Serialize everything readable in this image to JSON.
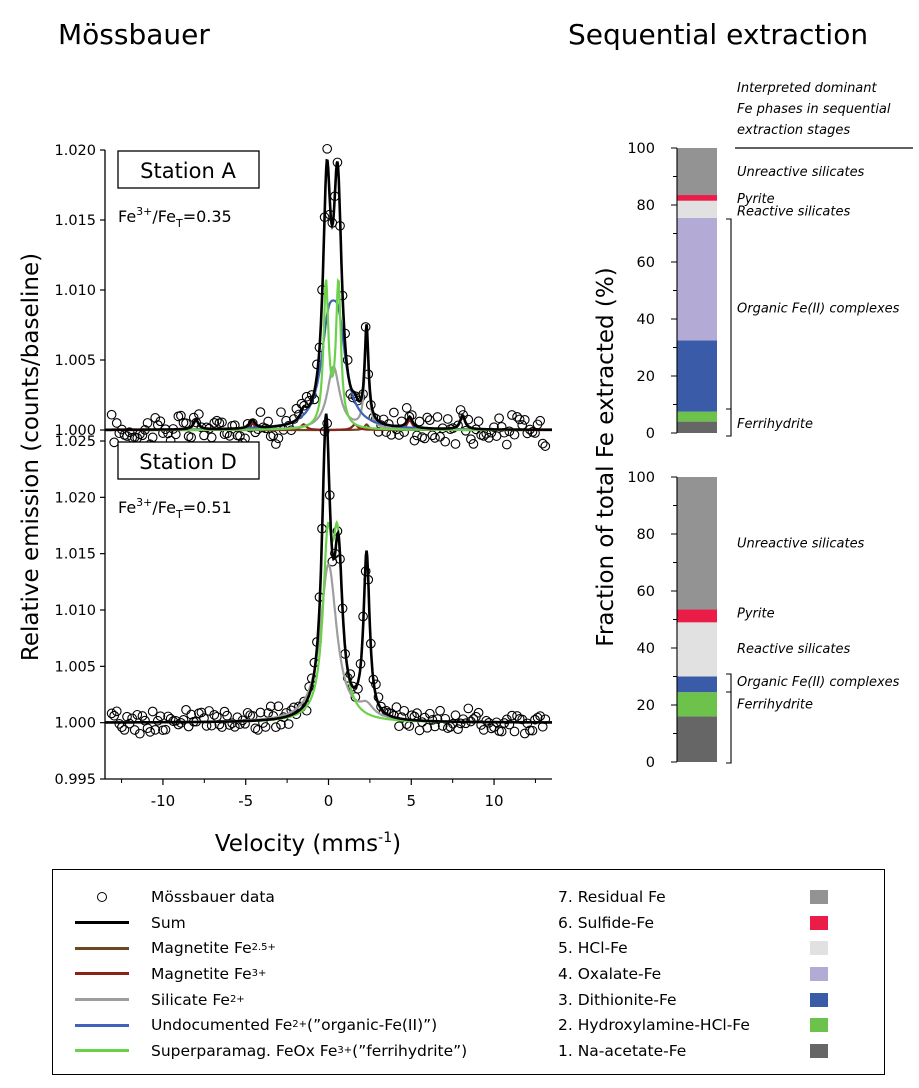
{
  "titles": {
    "left": "Mössbauer",
    "right": "Sequential extraction"
  },
  "chart_data": [
    {
      "type": "scatter",
      "name": "mossbauer",
      "xlabel_main": "Velocity (mms",
      "xlabel_sup": "-1",
      "xlabel_end": ")",
      "ylabel": "Relative emission (counts/baseline)",
      "xlim": [
        -13.5,
        13.5
      ],
      "xticks": [
        "-10",
        "-5",
        "0",
        "5",
        "10"
      ],
      "panels": [
        {
          "label": "Station A",
          "ratio": {
            "a": "Fe",
            "b": "3+",
            "c": "/Fe",
            "d": "T",
            "e": "=0.35"
          },
          "ylim": [
            0.998,
            1.02
          ],
          "yticks": [
            "1.000",
            "1.005",
            "1.010",
            "1.015",
            "1.020"
          ],
          "components": {
            "sum": [
              [
                -0.1,
                1.0163,
                0.28
              ],
              [
                0.55,
                1.0165,
                0.3
              ],
              [
                2.3,
                1.0068,
                0.14
              ],
              [
                -8.0,
                1.0007,
                0.18
              ],
              [
                8.1,
                1.001,
                0.18
              ],
              [
                -4.6,
                1.0006,
                0.2
              ],
              [
                4.9,
                1.0008,
                0.2
              ],
              [
                -1.5,
                1.0007,
                0.2
              ],
              [
                1.6,
                1.0007,
                0.2
              ]
            ],
            "magnetite25": [
              [
                -8.0,
                1.0007,
                0.18
              ],
              [
                8.1,
                1.001,
                0.18
              ],
              [
                2.3,
                1.0004,
                0.15
              ]
            ],
            "magnetite3": [
              [
                -4.6,
                1.0005,
                0.2
              ],
              [
                4.9,
                1.0007,
                0.2
              ],
              [
                -1.5,
                1.0004,
                0.2
              ],
              [
                1.6,
                1.0004,
                0.2
              ]
            ],
            "silicate": [
              [
                0.3,
                1.0045,
                0.45
              ],
              [
                2.3,
                1.0068,
                0.14
              ]
            ],
            "organic": [
              [
                0.0,
                1.006,
                0.55
              ],
              [
                0.6,
                1.006,
                0.55
              ]
            ],
            "ferrihydrite": [
              [
                -0.15,
                1.0102,
                0.18
              ],
              [
                0.6,
                1.0102,
                0.18
              ]
            ]
          }
        },
        {
          "label": "Station D",
          "ratio": {
            "a": "Fe",
            "b": "3+",
            "c": "/Fe",
            "d": "T",
            "e": "=0.51"
          },
          "ylim": [
            0.995,
            1.027
          ],
          "yticks": [
            "0.995",
            "1.000",
            "1.005",
            "1.010",
            "1.015",
            "1.020",
            "1.025"
          ],
          "components": {
            "sum": [
              [
                -0.15,
                1.0255,
                0.3
              ],
              [
                0.6,
                1.013,
                0.3
              ],
              [
                2.3,
                1.0145,
                0.22
              ]
            ],
            "silicate": [
              [
                0.0,
                1.014,
                0.6
              ],
              [
                2.3,
                1.001,
                0.5
              ]
            ],
            "ferrihydrite": [
              [
                -0.05,
                1.014,
                0.35
              ],
              [
                0.55,
                1.014,
                0.35
              ]
            ]
          }
        }
      ]
    },
    {
      "type": "bar",
      "name": "sequential",
      "ylabel": "Fraction of total Fe extracted (%)",
      "ylim": [
        0,
        100
      ],
      "yticks": [
        "0",
        "20",
        "40",
        "60",
        "80",
        "100"
      ],
      "header": [
        "Interpreted dominant",
        "Fe phases in sequential",
        "extraction stages"
      ],
      "stages": [
        "1. Na-acetate-Fe",
        "2. Hydroxylamine-HCl-Fe",
        "3. Dithionite-Fe",
        "4. Oxalate-Fe",
        "5. HCl-Fe",
        "6. Sulfide-Fe",
        "7. Residual Fe"
      ],
      "stage_colors": [
        "#666666",
        "#6cc24a",
        "#3a5ca8",
        "#b3aad6",
        "#e1e1e1",
        "#ea1d48",
        "#939393"
      ],
      "bars": [
        {
          "values": [
            4,
            3.5,
            25,
            43,
            6,
            2,
            16.5
          ],
          "annotations": [
            {
              "text": "Unreactive silicates",
              "y": 92
            },
            {
              "text": "Pyrite",
              "y": 82.5
            },
            {
              "text": "Reactive silicates",
              "y": 78
            },
            {
              "text": "Organic Fe(II) complexes",
              "y": 44
            },
            {
              "text": "Ferrihydrite",
              "y": 3.5
            }
          ]
        },
        {
          "values": [
            16,
            8.5,
            5.5,
            0,
            19,
            4.5,
            46.5
          ],
          "annotations": [
            {
              "text": "Unreactive silicates",
              "y": 77
            },
            {
              "text": "Pyrite",
              "y": 52.5
            },
            {
              "text": "Reactive silicates",
              "y": 40
            },
            {
              "text": "Organic Fe(II) complexes",
              "y": 28.5
            },
            {
              "text": "Ferrihydrite",
              "y": 20.5
            }
          ]
        }
      ]
    }
  ],
  "legend": {
    "left": [
      {
        "kind": "circle",
        "label": "Mössbauer data"
      },
      {
        "kind": "line",
        "color": "#000000",
        "label": "Sum"
      },
      {
        "kind": "line",
        "color": "#6b4724",
        "label": "Magnetite Fe",
        "sup": "2.5+"
      },
      {
        "kind": "line",
        "color": "#8b2219",
        "label": "Magnetite Fe",
        "sup": "3+"
      },
      {
        "kind": "line",
        "color": "#9e9e9e",
        "label": "Silicate Fe",
        "sup": "2+"
      },
      {
        "kind": "line",
        "color": "#3e63b8",
        "label": "Undocumented Fe",
        "sup": "2+",
        "tail": " (”organic-Fe(II)”)"
      },
      {
        "kind": "line",
        "color": "#6cd14a",
        "label": "Superparamag. FeOx Fe",
        "sup": "3+",
        "tail": " (”ferrihydrite”)"
      }
    ],
    "right": [
      {
        "label": "7. Residual Fe",
        "color": "#939393"
      },
      {
        "label": "6. Sulfide-Fe",
        "color": "#ea1d48"
      },
      {
        "label": "5. HCl-Fe",
        "color": "#e1e1e1"
      },
      {
        "label": "4. Oxalate-Fe",
        "color": "#b3aad6"
      },
      {
        "label": "3. Dithionite-Fe",
        "color": "#3a5ca8"
      },
      {
        "label": "2. Hydroxylamine-HCl-Fe",
        "color": "#6cc24a"
      },
      {
        "label": "1. Na-acetate-Fe",
        "color": "#666666"
      }
    ]
  },
  "colors": {
    "sum": "#000000",
    "magnetite25": "#6b4724",
    "magnetite3": "#8b2219",
    "silicate": "#9e9e9e",
    "organic": "#3e63b8",
    "ferrihydrite": "#6cd14a"
  }
}
